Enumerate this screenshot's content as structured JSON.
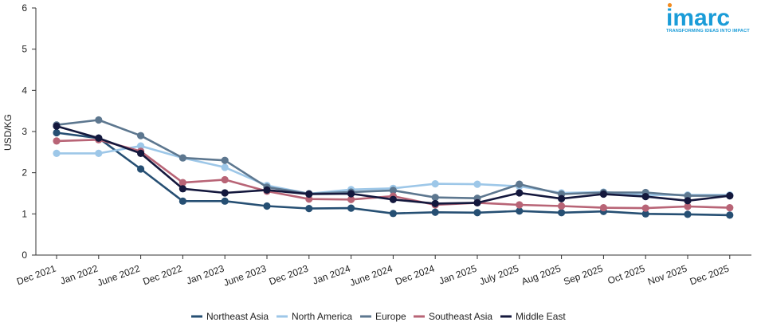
{
  "logo": {
    "word": "imarc",
    "tagline": "TRANSFORMING IDEAS INTO IMPACT",
    "color": "#1a9cd8"
  },
  "chart_data": {
    "type": "line",
    "title": "",
    "xlabel": "",
    "ylabel": "USD/KG",
    "ylim": [
      0,
      6
    ],
    "yticks": [
      0,
      1,
      2,
      3,
      4,
      5,
      6
    ],
    "grid": false,
    "legend_position": "bottom-center",
    "categories": [
      "Dec 2021",
      "Jan 2022",
      "June 2022",
      "Dec 2022",
      "Jan 2023",
      "June 2023",
      "Dec 2023",
      "Jan 2024",
      "June 2024",
      "Dec 2024",
      "Jan 2025",
      "July 2025",
      "Aug 2025",
      "Sep 2025",
      "Oct 2025",
      "Nov 2025",
      "Dec 2025"
    ],
    "series": [
      {
        "name": "Northeast Asia",
        "color": "#264f73",
        "values": [
          2.97,
          2.84,
          2.09,
          1.31,
          1.31,
          1.19,
          1.13,
          1.14,
          1.01,
          1.04,
          1.03,
          1.07,
          1.03,
          1.06,
          1.0,
          0.99,
          0.97
        ]
      },
      {
        "name": "North America",
        "color": "#9dc7e8",
        "values": [
          2.47,
          2.47,
          2.65,
          2.36,
          2.13,
          1.69,
          1.49,
          1.59,
          1.62,
          1.73,
          1.72,
          1.67,
          1.51,
          1.53,
          1.46,
          1.46,
          1.46
        ]
      },
      {
        "name": "Europe",
        "color": "#5d778f",
        "values": [
          3.16,
          3.28,
          2.9,
          2.36,
          2.3,
          1.65,
          1.49,
          1.53,
          1.57,
          1.4,
          1.38,
          1.72,
          1.48,
          1.52,
          1.52,
          1.44,
          1.44
        ]
      },
      {
        "name": "Southeast Asia",
        "color": "#b86476",
        "values": [
          2.77,
          2.8,
          2.52,
          1.76,
          1.83,
          1.55,
          1.36,
          1.35,
          1.43,
          1.22,
          1.27,
          1.22,
          1.19,
          1.15,
          1.14,
          1.18,
          1.15
        ]
      },
      {
        "name": "Middle East",
        "color": "#14183d",
        "values": [
          3.13,
          2.84,
          2.47,
          1.61,
          1.51,
          1.58,
          1.48,
          1.49,
          1.35,
          1.25,
          1.27,
          1.51,
          1.37,
          1.48,
          1.42,
          1.32,
          1.44
        ]
      }
    ]
  }
}
